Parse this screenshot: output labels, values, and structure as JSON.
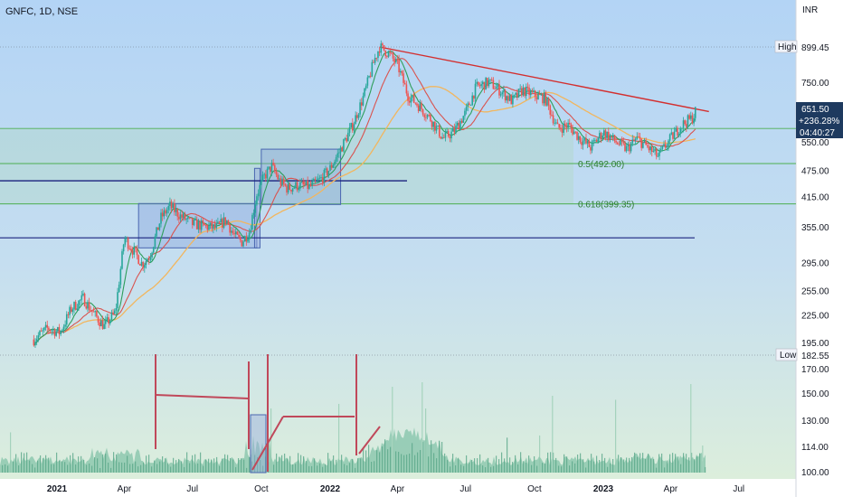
{
  "header": {
    "symbol": "GNFC, 1D, NSE",
    "currency": "INR"
  },
  "price_tags": {
    "high_label": "High",
    "high_value": "899.45",
    "low_label": "Low",
    "low_value": "182.55",
    "last_price": "651.50",
    "change_pct": "+236.28%",
    "countdown": "04:40:27"
  },
  "colors": {
    "background_top": "#b3d4f5",
    "background_bottom": "#d8ecd4",
    "candles": "#26a69a",
    "candles_down": "#ef5350",
    "ma_fast": "#2e9e5b",
    "ma_mid": "#d9534f",
    "ma_slow": "#f2b65e",
    "fib_lines": "#4caf50",
    "level_lines": "#1a237e",
    "trendline": "#d32f2f",
    "boxes": "#7e9ad8",
    "volume": "#64b596",
    "volume_annotations": "#c0485a",
    "accent_price": "#1e3a5f"
  },
  "chart_data": {
    "type": "candlestick",
    "title": "GNFC, 1D, NSE",
    "price_axis": {
      "scale": "log",
      "currency": "INR",
      "ticks": [
        "750.00",
        "650.00",
        "550.00",
        "475.00",
        "415.00",
        "355.00",
        "295.00",
        "255.00",
        "225.00",
        "195.00"
      ],
      "ylim": [
        180,
        930
      ]
    },
    "volume_axis": {
      "ticks": [
        "170.00",
        "150.00",
        "130.00",
        "114.00",
        "100.00"
      ]
    },
    "x_axis": {
      "ticks": [
        {
          "label": "2021",
          "bold": true
        },
        {
          "label": "Apr",
          "bold": false
        },
        {
          "label": "Jul",
          "bold": false
        },
        {
          "label": "Oct",
          "bold": false
        },
        {
          "label": "2022",
          "bold": true
        },
        {
          "label": "Apr",
          "bold": false
        },
        {
          "label": "Jul",
          "bold": false
        },
        {
          "label": "Oct",
          "bold": false
        },
        {
          "label": "2023",
          "bold": true
        },
        {
          "label": "Apr",
          "bold": false
        },
        {
          "label": "Jul",
          "bold": false
        }
      ]
    },
    "series": [
      {
        "kind": "price",
        "points": [
          [
            "2020-12-01",
            198
          ],
          [
            "2020-12-20",
            210
          ],
          [
            "2021-01-05",
            205
          ],
          [
            "2021-01-20",
            232
          ],
          [
            "2021-02-05",
            245
          ],
          [
            "2021-02-20",
            225
          ],
          [
            "2021-03-05",
            212
          ],
          [
            "2021-03-20",
            228
          ],
          [
            "2021-04-01",
            335
          ],
          [
            "2021-04-15",
            310
          ],
          [
            "2021-04-25",
            292
          ],
          [
            "2021-05-05",
            305
          ],
          [
            "2021-05-20",
            372
          ],
          [
            "2021-06-01",
            395
          ],
          [
            "2021-06-15",
            375
          ],
          [
            "2021-07-01",
            360
          ],
          [
            "2021-07-15",
            356
          ],
          [
            "2021-08-01",
            352
          ],
          [
            "2021-08-15",
            368
          ],
          [
            "2021-08-25",
            340
          ],
          [
            "2021-09-05",
            328
          ],
          [
            "2021-09-15",
            346
          ],
          [
            "2021-09-25",
            420
          ],
          [
            "2021-10-05",
            460
          ],
          [
            "2021-10-15",
            485
          ],
          [
            "2021-10-25",
            450
          ],
          [
            "2021-11-05",
            432
          ],
          [
            "2021-11-20",
            440
          ],
          [
            "2021-12-05",
            436
          ],
          [
            "2021-12-20",
            455
          ],
          [
            "2022-01-01",
            480
          ],
          [
            "2022-01-15",
            530
          ],
          [
            "2022-02-01",
            605
          ],
          [
            "2022-02-15",
            700
          ],
          [
            "2022-03-01",
            840
          ],
          [
            "2022-03-08",
            899.45
          ],
          [
            "2022-03-20",
            870
          ],
          [
            "2022-04-01",
            820
          ],
          [
            "2022-04-15",
            700
          ],
          [
            "2022-05-01",
            660
          ],
          [
            "2022-05-15",
            620
          ],
          [
            "2022-06-01",
            560
          ],
          [
            "2022-06-15",
            580
          ],
          [
            "2022-07-01",
            640
          ],
          [
            "2022-07-15",
            730
          ],
          [
            "2022-08-01",
            750
          ],
          [
            "2022-08-15",
            720
          ],
          [
            "2022-09-01",
            680
          ],
          [
            "2022-09-15",
            720
          ],
          [
            "2022-10-01",
            700
          ],
          [
            "2022-10-15",
            690
          ],
          [
            "2022-11-01",
            590
          ],
          [
            "2022-11-15",
            600
          ],
          [
            "2022-12-01",
            560
          ],
          [
            "2022-12-15",
            535
          ],
          [
            "2023-01-01",
            580
          ],
          [
            "2023-01-15",
            555
          ],
          [
            "2023-02-01",
            530
          ],
          [
            "2023-02-15",
            560
          ],
          [
            "2023-03-01",
            535
          ],
          [
            "2023-03-15",
            510
          ],
          [
            "2023-04-01",
            560
          ],
          [
            "2023-04-15",
            600
          ],
          [
            "2023-05-01",
            625
          ],
          [
            "2023-05-05",
            651.5
          ]
        ]
      }
    ],
    "fibonacci": [
      {
        "label": "0.5(492.00)",
        "value": 492.0
      },
      {
        "label": "0.618(399.35)",
        "value": 399.35
      },
      {
        "label": "",
        "value": 590
      }
    ],
    "horizontal_levels": [
      450,
      335
    ],
    "trendline": [
      [
        "2022-03-08",
        899.45
      ],
      [
        "2023-05-10",
        650
      ]
    ],
    "boxes": [
      {
        "from": "2021-04-20",
        "to": "2021-09-25",
        "low": 318,
        "high": 400
      },
      {
        "from": "2021-10-01",
        "to": "2022-01-15",
        "low": 398,
        "high": 530
      }
    ]
  }
}
